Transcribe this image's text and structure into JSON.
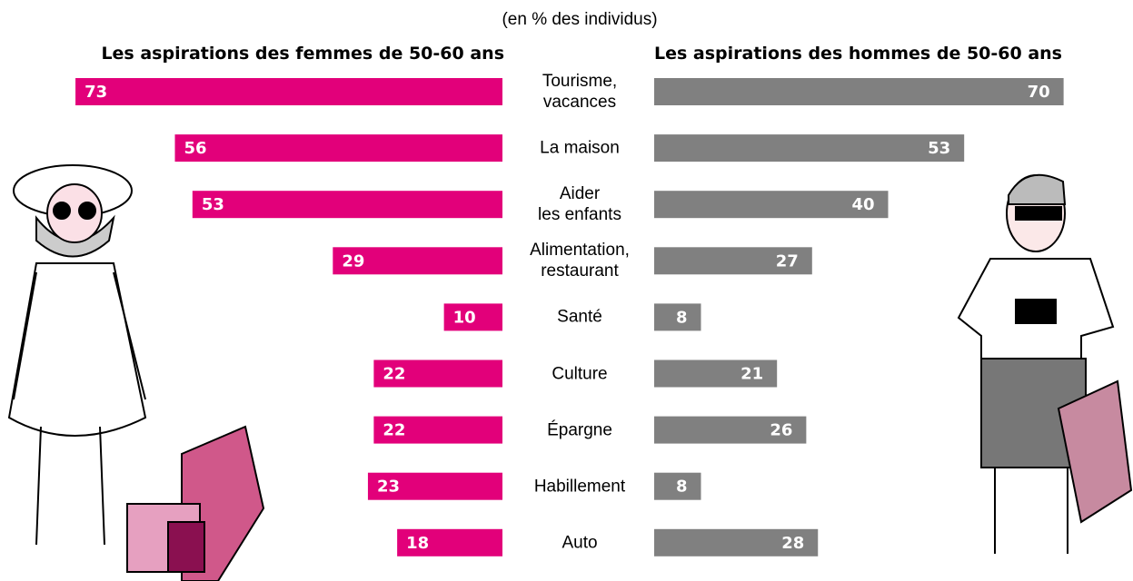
{
  "chart_data": {
    "type": "butterfly-bar",
    "subtitle": "(en % des individus)",
    "categories": [
      "Tourisme,\nvacances",
      "La maison",
      "Aider\nles enfants",
      "Alimentation,\nrestaurant",
      "Santé",
      "Culture",
      "Épargne",
      "Habillement",
      "Auto"
    ],
    "series": [
      {
        "name": "Les aspirations des femmes de 50-60 ans",
        "color": "#e2007a",
        "values": [
          73,
          56,
          53,
          29,
          10,
          22,
          22,
          23,
          18
        ]
      },
      {
        "name": "Les aspirations des hommes de 50-60 ans",
        "color": "#808080",
        "values": [
          70,
          53,
          40,
          27,
          8,
          21,
          26,
          8,
          28
        ]
      }
    ],
    "xlim": [
      0,
      80
    ]
  }
}
